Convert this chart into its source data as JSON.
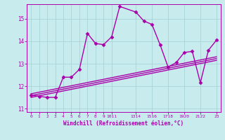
{
  "xlabel": "Windchill (Refroidissement éolien,°C)",
  "x_main": [
    0,
    1,
    2,
    3,
    4,
    5,
    6,
    7,
    8,
    9,
    10,
    11,
    13,
    14,
    15,
    16,
    17,
    18,
    19,
    20,
    21,
    22,
    23
  ],
  "y_main": [
    11.6,
    11.55,
    11.5,
    11.5,
    12.4,
    12.4,
    12.75,
    14.35,
    13.9,
    13.85,
    14.2,
    15.55,
    15.3,
    14.9,
    14.75,
    13.85,
    12.85,
    13.05,
    13.5,
    13.55,
    12.15,
    13.6,
    14.05
  ],
  "reg_lines": [
    {
      "x": [
        0,
        23
      ],
      "y": [
        11.5,
        13.15
      ]
    },
    {
      "x": [
        0,
        23
      ],
      "y": [
        11.58,
        13.23
      ]
    },
    {
      "x": [
        0,
        23
      ],
      "y": [
        11.66,
        13.31
      ]
    }
  ],
  "ylim": [
    10.85,
    15.65
  ],
  "xlim": [
    -0.5,
    23.5
  ],
  "yticks": [
    11,
    12,
    13,
    14,
    15
  ],
  "xtick_positions": [
    0,
    1,
    2,
    3,
    4,
    5,
    6,
    7,
    8,
    9,
    10,
    13,
    15,
    17,
    19,
    21,
    23
  ],
  "xtick_labels": [
    "0",
    "1",
    "2",
    "3",
    "4",
    "5",
    "6",
    "7",
    "8",
    "9",
    "1011",
    "1314",
    "1516",
    "1718",
    "1920",
    "2122",
    "23"
  ],
  "bg_color": "#c8ecee",
  "grid_color": "#a8d4d8",
  "line_color": "#aa00aa",
  "marker_size": 2.5,
  "line_width": 1.0
}
